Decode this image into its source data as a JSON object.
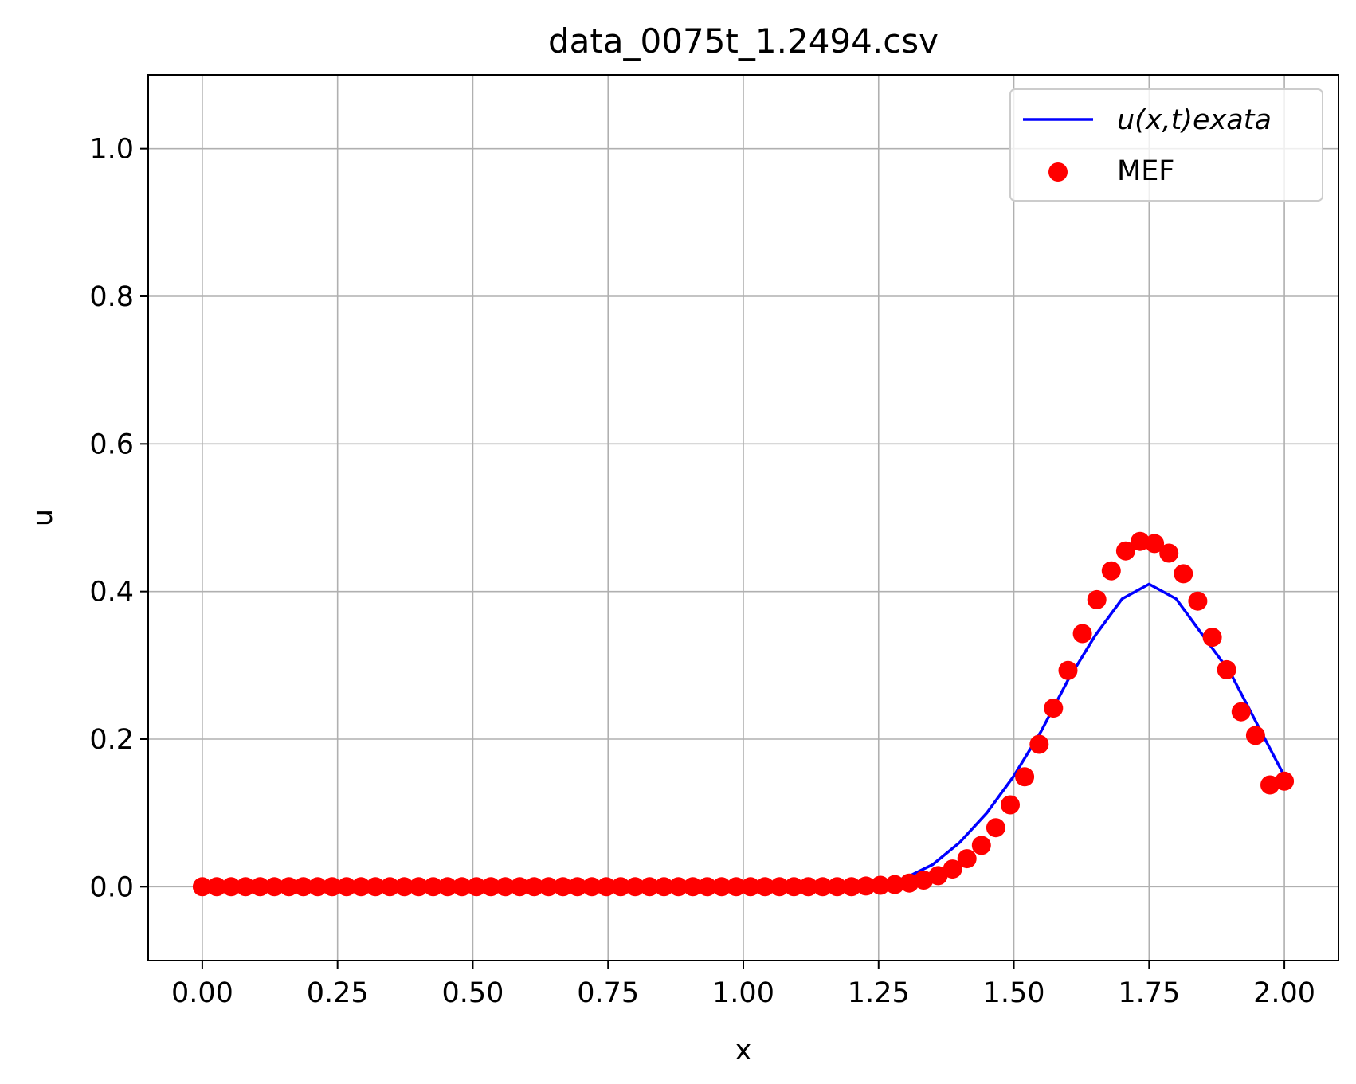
{
  "chart_data": {
    "type": "line",
    "title": "data_0075t_1.2494.csv",
    "xlabel": "x",
    "ylabel": "u",
    "xlim": [
      -0.1,
      2.1
    ],
    "ylim": [
      -0.1,
      1.1
    ],
    "grid": true,
    "x_ticks": [
      "0.00",
      "0.25",
      "0.50",
      "0.75",
      "1.00",
      "1.25",
      "1.50",
      "1.75",
      "2.00"
    ],
    "x_tick_values": [
      0,
      0.25,
      0.5,
      0.75,
      1.0,
      1.25,
      1.5,
      1.75,
      2.0
    ],
    "y_ticks": [
      "0.0",
      "0.2",
      "0.4",
      "0.6",
      "0.8",
      "1.0"
    ],
    "y_tick_values": [
      0,
      0.2,
      0.4,
      0.6,
      0.8,
      1.0
    ],
    "legend": {
      "placement": "top-right"
    },
    "series": [
      {
        "name": "u(x,t)exata",
        "kind": "line",
        "color": "#0000ff",
        "x": [
          0,
          1.2,
          1.25,
          1.3,
          1.35,
          1.4,
          1.45,
          1.5,
          1.55,
          1.6,
          1.65,
          1.7,
          1.75,
          1.8,
          1.85,
          1.9,
          1.95,
          2.0
        ],
        "y": [
          0,
          0.0,
          0.003,
          0.012,
          0.03,
          0.06,
          0.1,
          0.15,
          0.21,
          0.28,
          0.34,
          0.39,
          0.41,
          0.39,
          0.34,
          0.29,
          0.22,
          0.15
        ]
      },
      {
        "name": "MEF",
        "kind": "scatter",
        "color": "#ff0000",
        "x": [
          0.0,
          0.0267,
          0.0533,
          0.08,
          0.1067,
          0.1333,
          0.16,
          0.1867,
          0.2133,
          0.24,
          0.2667,
          0.2933,
          0.32,
          0.3467,
          0.3733,
          0.4,
          0.4267,
          0.4533,
          0.48,
          0.5067,
          0.5333,
          0.56,
          0.5867,
          0.6133,
          0.64,
          0.6667,
          0.6933,
          0.72,
          0.7467,
          0.7733,
          0.8,
          0.8267,
          0.8533,
          0.88,
          0.9067,
          0.9333,
          0.96,
          0.9867,
          1.0133,
          1.04,
          1.0667,
          1.0933,
          1.12,
          1.1467,
          1.1733,
          1.2,
          1.2267,
          1.2533,
          1.28,
          1.3067,
          1.3333,
          1.36,
          1.3867,
          1.4133,
          1.44,
          1.4667,
          1.4933,
          1.52,
          1.5467,
          1.5733,
          1.6,
          1.6267,
          1.6533,
          1.68,
          1.7067,
          1.7333,
          1.76,
          1.7867,
          1.8133,
          1.84,
          1.8667,
          1.8933,
          1.92,
          1.9467,
          1.9733,
          2.0
        ],
        "y": [
          0,
          0,
          0,
          0,
          0,
          0,
          0,
          0,
          0,
          0,
          0,
          0,
          0,
          0,
          0,
          0,
          0,
          0,
          0,
          0,
          0,
          0,
          0,
          0,
          0,
          0,
          0,
          0,
          0,
          0,
          0,
          0,
          0,
          0,
          0,
          0,
          0,
          0,
          0,
          0,
          0,
          0,
          0,
          0,
          0,
          0.0,
          0.001,
          0.002,
          0.003,
          0.005,
          0.009,
          0.015,
          0.024,
          0.038,
          0.056,
          0.08,
          0.111,
          0.149,
          0.193,
          0.242,
          0.293,
          0.343,
          0.389,
          0.428,
          0.455,
          0.468,
          0.465,
          0.452,
          0.424,
          0.387,
          0.338,
          0.294,
          0.237,
          0.205,
          0.138,
          0.143
        ]
      }
    ]
  }
}
